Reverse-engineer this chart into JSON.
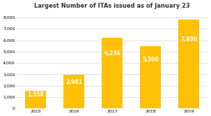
{
  "categories": [
    "2015",
    "2016",
    "2017",
    "2018",
    "2019"
  ],
  "values": [
    1558,
    2981,
    6236,
    5500,
    7800
  ],
  "labels": [
    "1,558",
    "2,981",
    "6,236",
    "5,500",
    "7,800"
  ],
  "bar_color": "#FFC107",
  "label_color": "#FFFFFF",
  "title": "Largest Number of ITAs issued as of January 23",
  "title_fontsize": 6.0,
  "title_fontweight": "bold",
  "tick_fontsize": 4.5,
  "label_fontsize": 5.5,
  "label_fontweight": "bold",
  "ylim": [
    0,
    8500
  ],
  "yticks": [
    0,
    1000,
    2000,
    3000,
    4000,
    5000,
    6000,
    7000,
    8000
  ],
  "background_color": "#FFFFFF",
  "grid_color": "#CCCCCC"
}
